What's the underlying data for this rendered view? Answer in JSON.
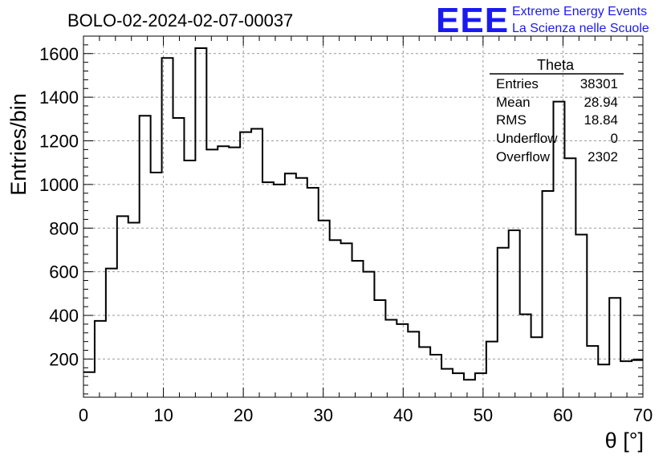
{
  "header": {
    "run_title": "BOLO-02-2024-02-07-00037",
    "brand_logo": "EEE",
    "brand_line1": "Extreme Energy Events",
    "brand_line2": "La Scienza nelle Scuole"
  },
  "stats": {
    "title": "Theta",
    "rows": [
      {
        "label": "Entries",
        "value": "38301"
      },
      {
        "label": "Mean",
        "value": "28.94"
      },
      {
        "label": "RMS",
        "value": "18.84"
      },
      {
        "label": "Underflow",
        "value": "0"
      },
      {
        "label": "Overflow",
        "value": "2302"
      }
    ]
  },
  "chart_data": {
    "type": "bar",
    "title": "BOLO-02-2024-02-07-00037",
    "xlabel": "θ [°]",
    "ylabel": "Entries/bin",
    "xlim": [
      0,
      70
    ],
    "ylim": [
      25,
      1680
    ],
    "grid": true,
    "bin_width": 1.4,
    "bin_edges_start": 0,
    "x_ticks": [
      0,
      10,
      20,
      30,
      40,
      50,
      60,
      70
    ],
    "x_tick_labels": [
      "0",
      "10",
      "20",
      "30",
      "40",
      "50",
      "60",
      "70"
    ],
    "y_ticks": [
      200,
      400,
      600,
      800,
      1000,
      1200,
      1400,
      1600
    ],
    "y_tick_labels": [
      "200",
      "400",
      "600",
      "800",
      "1000",
      "1200",
      "1400",
      "1600"
    ],
    "values": [
      140,
      375,
      615,
      855,
      825,
      1315,
      1055,
      1580,
      1305,
      1110,
      1625,
      1160,
      1175,
      1170,
      1240,
      1255,
      1010,
      1000,
      1050,
      1030,
      985,
      835,
      745,
      730,
      650,
      600,
      470,
      380,
      360,
      325,
      255,
      220,
      155,
      135,
      105,
      135,
      280,
      710,
      790,
      405,
      300,
      970,
      1380,
      1120,
      770,
      260,
      175,
      480,
      190,
      195
    ]
  }
}
